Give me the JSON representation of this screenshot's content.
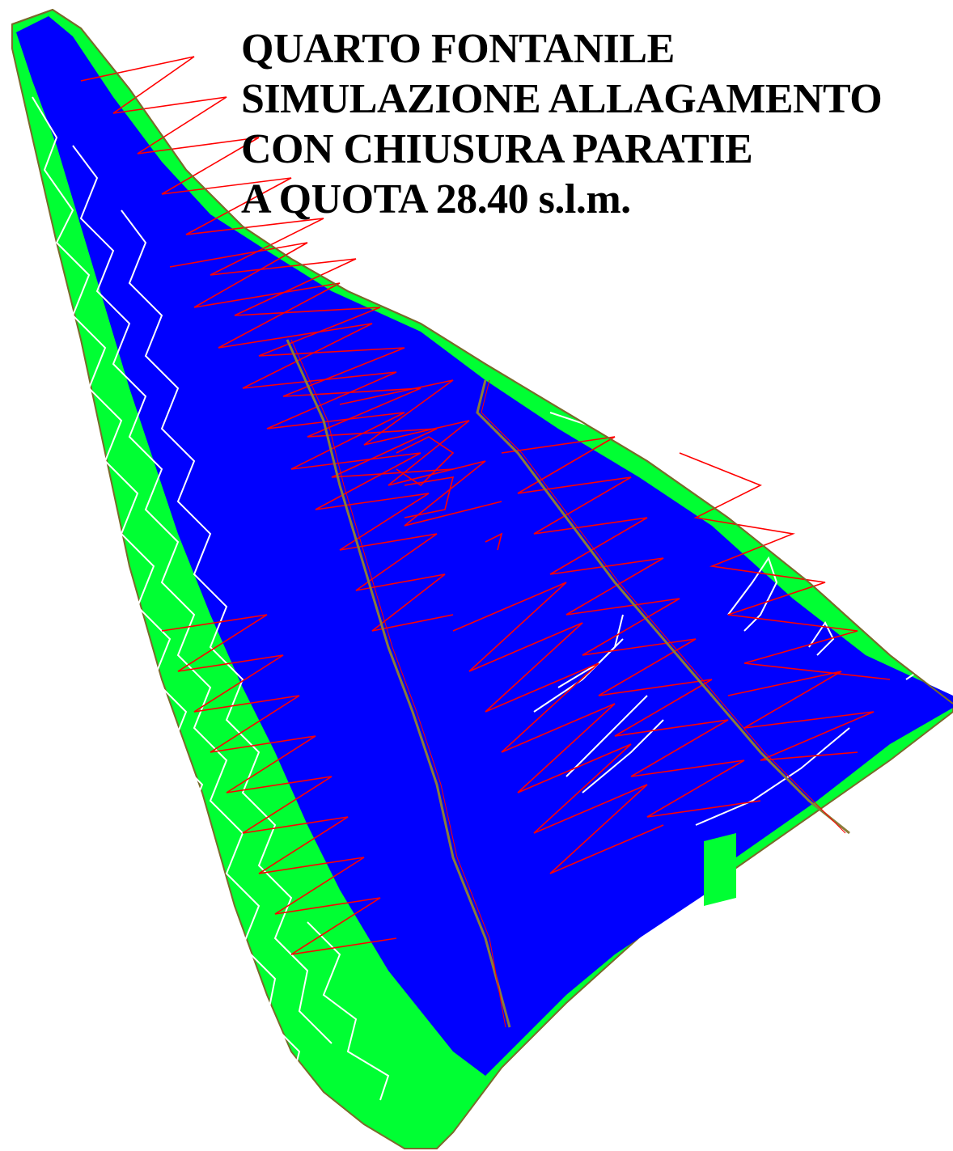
{
  "title": {
    "lines": [
      "QUARTO FONTANILE",
      "SIMULAZIONE ALLAGAMENTO",
      "CON CHIUSURA PARATIE",
      "A QUOTA 28.40 s.l.m."
    ]
  },
  "colors": {
    "flooded_area": "#0000ff",
    "dry_area": "#00ff33",
    "contour_red": "#ff0000",
    "contour_white": "#ffffff",
    "embankment_line": "#8b7d3a",
    "outline": "#7a6a2a",
    "background": "#ffffff",
    "text": "#000000"
  },
  "map": {
    "legend_items": [],
    "icons": [
      "contour-lines",
      "embankment-line"
    ]
  }
}
